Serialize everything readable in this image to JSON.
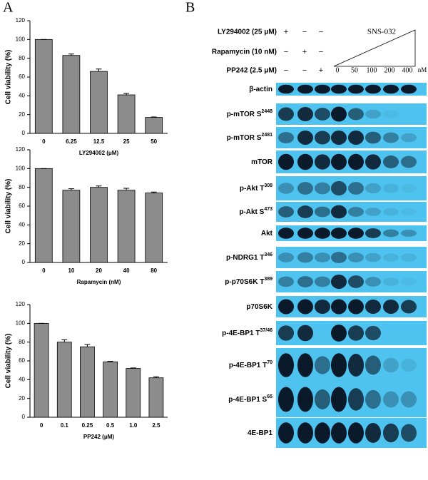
{
  "panel_labels": [
    "A",
    "B"
  ],
  "chart_data": [
    {
      "type": "bar",
      "ylabel": "Cell viability (%)",
      "xlabel": "LY294002 (μM)",
      "categories": [
        "0",
        "6.25",
        "12.5",
        "25",
        "50"
      ],
      "values": [
        100,
        83,
        66,
        41,
        17
      ],
      "errors": [
        0,
        1.5,
        2.5,
        1.5,
        0.5
      ],
      "color": "#8c8c8c",
      "ylim": [
        0,
        120
      ],
      "yticks": [
        0,
        20,
        40,
        60,
        80,
        100,
        120
      ]
    },
    {
      "type": "bar",
      "ylabel": "Cell viability (%)",
      "xlabel": "Rapamycin (nM)",
      "categories": [
        "0",
        "10",
        "20",
        "40",
        "80"
      ],
      "values": [
        100,
        77,
        80,
        77,
        74
      ],
      "errors": [
        0,
        1.5,
        1.5,
        2,
        1
      ],
      "color": "#8c8c8c",
      "ylim": [
        0,
        120
      ],
      "yticks": [
        0,
        20,
        40,
        60,
        80,
        100,
        120
      ]
    },
    {
      "type": "bar",
      "ylabel": "Cell viability (%)",
      "xlabel": "PP242 (μM)",
      "categories": [
        "0",
        "0.1",
        "0.25",
        "0.5",
        "1.0",
        "2.5"
      ],
      "values": [
        100,
        80,
        75,
        59,
        52,
        42
      ],
      "errors": [
        0,
        2.5,
        2.5,
        0.5,
        0.5,
        1
      ],
      "color": "#8c8c8c",
      "ylim": [
        0,
        120
      ],
      "yticks": [
        0,
        20,
        40,
        60,
        80,
        100,
        120
      ]
    }
  ],
  "treatments": [
    {
      "name": "LY294002 (25 μM)",
      "signs": [
        "+",
        "−",
        "−"
      ]
    },
    {
      "name": "Rapamycin (10 nM)",
      "signs": [
        "−",
        "+",
        "−"
      ]
    },
    {
      "name": "PP242 (2.5 μM)",
      "signs": [
        "−",
        "−",
        "+"
      ]
    }
  ],
  "sns": {
    "name": "SNS-032",
    "doses": [
      "0",
      "50",
      "100",
      "200",
      "400"
    ],
    "unit": "nM"
  },
  "blots": [
    {
      "label": "β-actin"
    },
    {
      "label": "p-mTOR S",
      "sup": "2448"
    },
    {
      "label": "p-mTOR S",
      "sup": "2481"
    },
    {
      "label": "mTOR"
    },
    {
      "label": "p-Akt T",
      "sup": "308"
    },
    {
      "label": "p-Akt S",
      "sup": "473"
    },
    {
      "label": "Akt"
    },
    {
      "label": "p-NDRG1 T",
      "sup": "346"
    },
    {
      "label": "p-p70S6K T",
      "sup": "389"
    },
    {
      "label": "p70S6K"
    },
    {
      "label": "p-4E-BP1 T",
      "sup": "37/46"
    },
    {
      "label": "p-4E-BP1 T",
      "sup": "70"
    },
    {
      "label": "p-4E-BP1 S",
      "sup": "65"
    },
    {
      "label": "4E-BP1"
    }
  ]
}
